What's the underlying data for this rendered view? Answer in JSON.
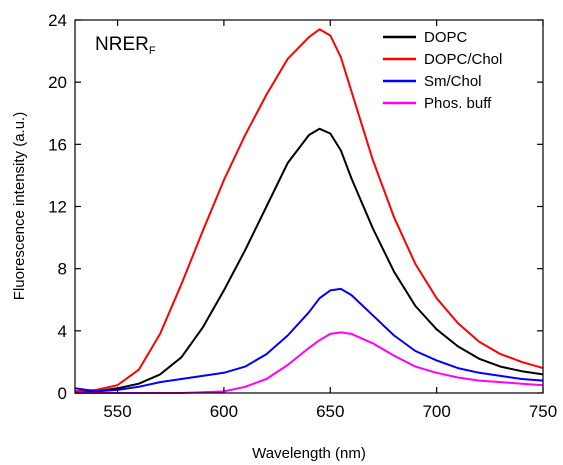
{
  "chart_data": {
    "type": "line",
    "panel_label": {
      "main": "NRER",
      "sub": "F"
    },
    "xlabel": "Wavelength (nm)",
    "ylabel": "Fluorescence intensity (a.u.)",
    "xlim": [
      530,
      750
    ],
    "ylim": [
      0,
      24
    ],
    "xticks": [
      550,
      600,
      650,
      700,
      750
    ],
    "yticks": [
      0,
      4,
      8,
      12,
      16,
      20,
      24
    ],
    "legend_position": "top-right",
    "grid": false,
    "series": [
      {
        "name": "DOPC",
        "color": "#000000",
        "x": [
          530,
          540,
          550,
          560,
          570,
          580,
          590,
          600,
          610,
          620,
          630,
          640,
          645,
          650,
          655,
          660,
          670,
          680,
          690,
          700,
          710,
          720,
          730,
          740,
          750
        ],
        "y": [
          0.1,
          0.1,
          0.3,
          0.6,
          1.2,
          2.3,
          4.2,
          6.6,
          9.2,
          12.0,
          14.8,
          16.6,
          17.0,
          16.7,
          15.6,
          13.8,
          10.6,
          7.8,
          5.6,
          4.1,
          3.0,
          2.2,
          1.7,
          1.4,
          1.2
        ]
      },
      {
        "name": "DOPC/Chol",
        "color": "#ff0000",
        "x": [
          530,
          540,
          550,
          560,
          570,
          580,
          590,
          600,
          610,
          620,
          630,
          640,
          645,
          650,
          655,
          660,
          670,
          680,
          690,
          700,
          710,
          720,
          730,
          740,
          750
        ],
        "y": [
          0.1,
          0.2,
          0.5,
          1.5,
          3.8,
          7.0,
          10.4,
          13.7,
          16.6,
          19.2,
          21.5,
          22.9,
          23.4,
          23.0,
          21.6,
          19.4,
          15.0,
          11.3,
          8.3,
          6.1,
          4.5,
          3.3,
          2.5,
          2.0,
          1.6
        ]
      },
      {
        "name": "Sm/Chol",
        "color": "#0000ff",
        "x": [
          530,
          540,
          550,
          560,
          570,
          580,
          590,
          600,
          610,
          620,
          630,
          640,
          645,
          650,
          655,
          660,
          670,
          680,
          690,
          700,
          710,
          720,
          730,
          740,
          750
        ],
        "y": [
          0.3,
          0.1,
          0.2,
          0.4,
          0.7,
          0.9,
          1.1,
          1.3,
          1.7,
          2.5,
          3.7,
          5.2,
          6.1,
          6.6,
          6.7,
          6.3,
          5.0,
          3.7,
          2.7,
          2.1,
          1.6,
          1.3,
          1.1,
          0.9,
          0.8
        ]
      },
      {
        "name": "Phos. buff",
        "color": "#ff00ff",
        "x": [
          530,
          540,
          550,
          560,
          570,
          580,
          590,
          600,
          610,
          620,
          630,
          640,
          645,
          650,
          655,
          660,
          670,
          680,
          690,
          700,
          710,
          720,
          730,
          740,
          750
        ],
        "y": [
          0.0,
          0.0,
          0.0,
          0.0,
          0.0,
          0.0,
          0.05,
          0.1,
          0.4,
          0.9,
          1.8,
          2.9,
          3.4,
          3.8,
          3.9,
          3.8,
          3.2,
          2.4,
          1.7,
          1.3,
          1.0,
          0.8,
          0.7,
          0.6,
          0.5
        ]
      }
    ]
  }
}
